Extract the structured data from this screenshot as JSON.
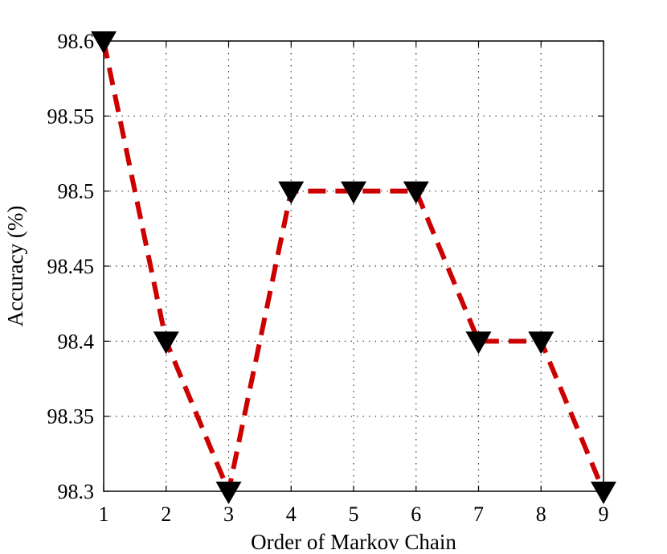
{
  "chart_data": {
    "type": "line",
    "title": "",
    "xlabel": "Order of Markov Chain",
    "ylabel": "Accuracy (%)",
    "xlim": [
      1,
      9
    ],
    "ylim": [
      98.3,
      98.6
    ],
    "x_ticks": [
      "1",
      "2",
      "3",
      "4",
      "5",
      "6",
      "7",
      "8",
      "9"
    ],
    "y_ticks": [
      "98.3",
      "98.35",
      "98.4",
      "98.45",
      "98.5",
      "98.55",
      "98.6"
    ],
    "y_tick_values": [
      98.3,
      98.35,
      98.4,
      98.45,
      98.5,
      98.55,
      98.6
    ],
    "grid": true,
    "legend": "none",
    "series": [
      {
        "x": [
          1,
          2,
          3,
          4,
          5,
          6,
          7,
          8,
          9
        ],
        "values": [
          98.6,
          98.4,
          98.3,
          98.5,
          98.5,
          98.5,
          98.4,
          98.4,
          98.3
        ],
        "line_color": "#cc0000",
        "line_style": "dashed",
        "marker": "down-triangle",
        "marker_color": "#000000"
      }
    ]
  }
}
